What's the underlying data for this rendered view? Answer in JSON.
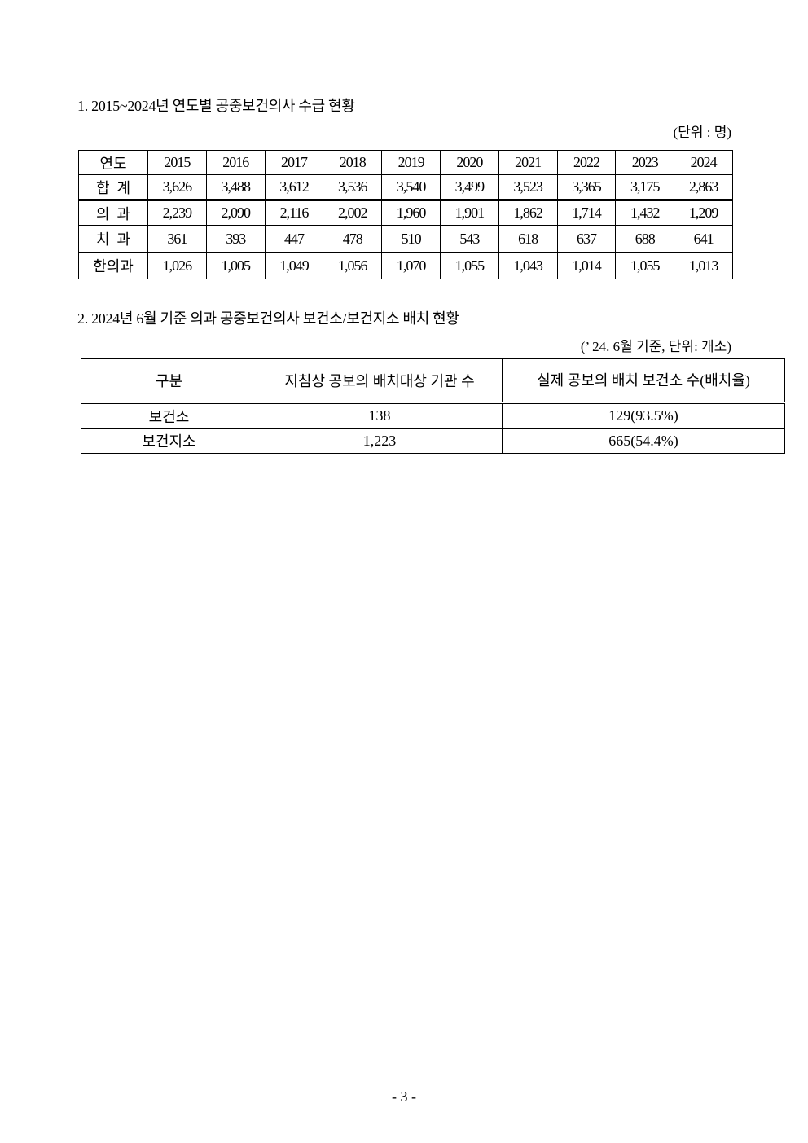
{
  "section1": {
    "title": "1. 2015~2024년 연도별 공중보건의사 수급 현황",
    "unit": "(단위 : 명)",
    "header": [
      "연도",
      "2015",
      "2016",
      "2017",
      "2018",
      "2019",
      "2020",
      "2021",
      "2022",
      "2023",
      "2024"
    ],
    "rows": [
      [
        "합  계",
        "3,626",
        "3,488",
        "3,612",
        "3,536",
        "3,540",
        "3,499",
        "3,523",
        "3,365",
        "3,175",
        "2,863"
      ],
      [
        "의  과",
        "2,239",
        "2,090",
        "2,116",
        "2,002",
        "1,960",
        "1,901",
        "1,862",
        "1,714",
        "1,432",
        "1,209"
      ],
      [
        "치  과",
        "361",
        "393",
        "447",
        "478",
        "510",
        "543",
        "618",
        "637",
        "688",
        "641"
      ],
      [
        "한의과",
        "1,026",
        "1,005",
        "1,049",
        "1,056",
        "1,070",
        "1,055",
        "1,043",
        "1,014",
        "1,055",
        "1,013"
      ]
    ]
  },
  "section2": {
    "title": "2. 2024년 6월 기준 의과 공중보건의사 보건소/보건지소 배치 현황",
    "unit": "(’ 24. 6월 기준, 단위: 개소)",
    "header": [
      "구분",
      "지침상 공보의 배치대상 기관 수",
      "실제 공보의 배치 보건소 수(배치율)"
    ],
    "rows": [
      [
        "보건소",
        "138",
        "129(93.5%)"
      ],
      [
        "보건지소",
        "1,223",
        "665(54.4%)"
      ]
    ]
  },
  "page_number": "- 3 -"
}
